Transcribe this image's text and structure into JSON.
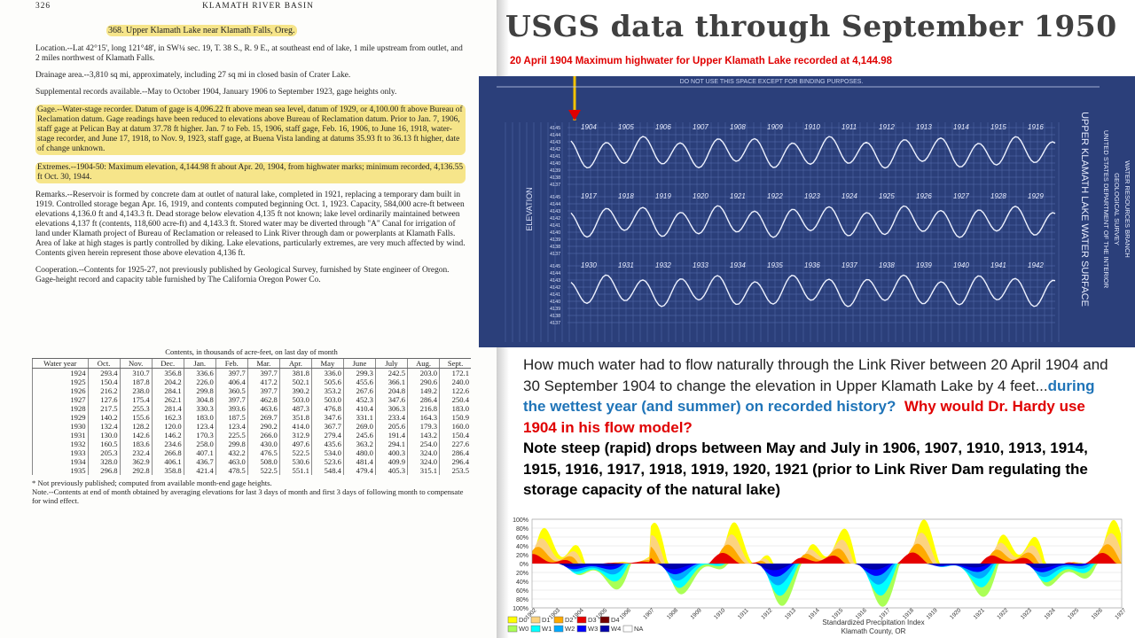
{
  "left_doc": {
    "page_number": "326",
    "running_head": "KLAMATH RIVER BASIN",
    "station": "368. Upper Klamath Lake near Klamath Falls, Oreg.",
    "paragraphs": [
      "Location.--Lat 42°15', long 121°48', in SW¼ sec. 19, T. 38 S., R. 9 E., at southeast end of lake, 1 mile upstream from outlet, and 2 miles northwest of Klamath Falls.",
      "Drainage area.--3,810 sq mi, approximately, including 27 sq mi in closed basin of Crater Lake.",
      "Supplemental records available.--May to October 1904, January 1906 to September 1923, gage heights only.",
      "Gage.--Water-stage recorder. Datum of gage is 4,096.22 ft above mean sea level, datum of 1929, or 4,100.00 ft above Bureau of Reclamation datum. Gage readings have been reduced to elevations above Bureau of Reclamation datum. Prior to Jan. 7, 1906, staff gage at Pelican Bay at datum 37.78 ft higher. Jan. 7 to Feb. 15, 1906, staff gage, Feb. 16, 1906, to June 16, 1918, water-stage recorder, and June 17, 1918, to Nov. 9, 1923, staff gage, at Buena Vista landing at datums 35.93 ft to 36.13 ft higher, date of change unknown.",
      "Extremes.--1904-50: Maximum elevation, 4,144.98 ft about Apr. 20, 1904, from highwater marks; minimum recorded, 4,136.55 ft Oct. 30, 1944.",
      "Remarks.--Reservoir is formed by concrete dam at outlet of natural lake, completed in 1921, replacing a temporary dam built in 1919. Controlled storage began Apr. 16, 1919, and contents computed beginning Oct. 1, 1923. Capacity, 584,000 acre-ft between elevations 4,136.0 ft and 4,143.3 ft. Dead storage below elevation 4,135 ft not known; lake level ordinarily maintained between elevations 4,137 ft (contents, 118,600 acre-ft) and 4,143.3 ft. Stored water may be diverted through \"A\" Canal for irrigation of land under Klamath project of Bureau of Reclamation or released to Link River through dam or powerplants at Klamath Falls. Area of lake at high stages is partly controlled by diking. Lake elevations, particularly extremes, are very much affected by wind. Contents given herein represent those above elevation 4,136 ft.",
      "Cooperation.--Contents for 1925-27, not previously published by Geological Survey, furnished by State engineer of Oregon. Gage-height record and capacity table furnished by The California Oregon Power Co."
    ]
  },
  "left_table": {
    "caption": "Contents, in thousands of acre-feet, on last day of month",
    "columns": [
      "Water year",
      "Oct.",
      "Nov.",
      "Dec.",
      "Jan.",
      "Feb.",
      "Mar.",
      "Apr.",
      "May",
      "June",
      "July",
      "Aug.",
      "Sept."
    ],
    "rows": [
      [
        "1924",
        "293.4",
        "310.7",
        "356.8",
        "336.6",
        "397.7",
        "397.7",
        "381.8",
        "336.0",
        "299.3",
        "242.5",
        "203.0",
        "172.1"
      ],
      [
        "1925",
        "150.4",
        "187.8",
        "204.2",
        "226.0",
        "406.4",
        "417.2",
        "502.1",
        "505.6",
        "455.6",
        "366.1",
        "290.6",
        "240.0"
      ],
      [
        "1926",
        "216.2",
        "238.0",
        "284.1",
        "299.8",
        "360.5",
        "397.7",
        "390.2",
        "353.2",
        "267.6",
        "204.8",
        "149.2",
        "122.6"
      ],
      [
        "1927",
        "127.6",
        "175.4",
        "262.1",
        "304.8",
        "397.7",
        "462.8",
        "503.0",
        "503.0",
        "452.3",
        "347.6",
        "286.4",
        "250.4"
      ],
      [
        "1928",
        "217.5",
        "255.3",
        "281.4",
        "330.3",
        "393.6",
        "463.6",
        "487.3",
        "476.8",
        "410.4",
        "306.3",
        "216.8",
        "183.0"
      ],
      [
        "1929",
        "140.2",
        "155.6",
        "162.3",
        "183.0",
        "187.5",
        "269.7",
        "351.8",
        "347.6",
        "331.1",
        "233.4",
        "164.3",
        "150.9"
      ],
      [
        "1930",
        "132.4",
        "128.2",
        "120.0",
        "123.4",
        "123.4",
        "290.2",
        "414.0",
        "367.7",
        "269.0",
        "205.6",
        "179.3",
        "160.0"
      ],
      [
        "1931",
        "130.0",
        "142.6",
        "146.2",
        "170.3",
        "225.5",
        "266.0",
        "312.9",
        "279.4",
        "245.6",
        "191.4",
        "143.2",
        "150.4"
      ],
      [
        "1932",
        "160.5",
        "183.6",
        "234.6",
        "258.0",
        "299.8",
        "430.0",
        "497.6",
        "435.6",
        "363.2",
        "294.1",
        "254.0",
        "227.6"
      ],
      [
        "1933",
        "205.3",
        "232.4",
        "266.8",
        "407.1",
        "432.2",
        "476.5",
        "522.5",
        "534.0",
        "480.0",
        "400.3",
        "324.0",
        "286.4"
      ],
      [
        "1934",
        "328.0",
        "362.9",
        "406.1",
        "436.7",
        "463.0",
        "508.0",
        "530.6",
        "523.6",
        "481.4",
        "409.9",
        "324.0",
        "296.4"
      ],
      [
        "1935",
        "296.8",
        "292.8",
        "358.8",
        "421.4",
        "478.5",
        "522.5",
        "551.1",
        "548.4",
        "479.4",
        "405.3",
        "315.1",
        "253.5"
      ]
    ],
    "footnotes": [
      "* Not previously published; computed from available month-end gage heights.",
      "Note.--Contents at end of month obtained by averaging elevations for last 3 days of month and first 3 days of following month to compensate for wind effect."
    ]
  },
  "title": "USGS data through September 1950",
  "caption": "20 April 1904 Maximum highwater for Upper Klamath Lake recorded at 4,144.98",
  "blueprint": {
    "header": "DO NOT USE THIS SPACE EXCEPT FOR BINDING PURPOSES.",
    "year_rows": [
      [
        "1904",
        "1905",
        "1906",
        "1907",
        "1908",
        "1909",
        "1910",
        "1911",
        "1912",
        "1913",
        "1914",
        "1915",
        "1916"
      ],
      [
        "1917",
        "1918",
        "1919",
        "1920",
        "1921",
        "1922",
        "1923",
        "1924",
        "1925",
        "1926",
        "1927",
        "1928",
        "1929"
      ],
      [
        "1930",
        "1931",
        "1932",
        "1933",
        "1934",
        "1935",
        "1936",
        "1937",
        "1938",
        "1939",
        "1940",
        "1941",
        "1942"
      ]
    ],
    "elevation_labels": [
      "4145",
      "4144",
      "4143",
      "4142",
      "4141",
      "4140",
      "4139",
      "4138",
      "4137"
    ],
    "axis_label": "ELEVATION",
    "side_label": "UPPER KLAMATH LAKE WATER SURFACE",
    "agency_lines": [
      "UNITED STATES DEPARTMENT OF THE INTERIOR",
      "GEOLOGICAL SURVEY",
      "WATER RESOURCES BRANCH"
    ]
  },
  "body": {
    "question": "How much water had to flow naturally through the Link River between 20 April 1904 and 30 September 1904 to change the elevation in Upper Klamath Lake by 4 feet...",
    "emphasis": "during the wettest year (and summer) on recorded history?",
    "challenge": "Why would Dr. Hardy use 1904 in his flow model?",
    "note": "Note steep (rapid) drops between May and July in 1906, 1907, 1910, 1913, 1914, 1915, 1916, 1917, 1918, 1919, 1920, 1921 (prior to Link River Dam regulating the storage capacity of the natural lake)"
  },
  "spi_chart": {
    "title": "Standardized Precipitation Index",
    "subtitle": "Klamath County, OR",
    "y_labels": [
      "100%",
      "80%",
      "60%",
      "40%",
      "20%",
      "0%",
      "20%",
      "40%",
      "60%",
      "80%",
      "100%"
    ],
    "x_labels": [
      "1902",
      "1903",
      "1904",
      "1905",
      "1906",
      "1907",
      "1908",
      "1909",
      "1910",
      "1911",
      "1912",
      "1913",
      "1914",
      "1915",
      "1916",
      "1917",
      "1918",
      "1919",
      "1920",
      "1921",
      "1922",
      "1923",
      "1924",
      "1925",
      "1926",
      "1927"
    ],
    "legend": [
      {
        "name": "D0",
        "color": "#ffff00"
      },
      {
        "name": "D1",
        "color": "#fcd37f"
      },
      {
        "name": "D2",
        "color": "#ffaa00"
      },
      {
        "name": "D3",
        "color": "#e60000"
      },
      {
        "name": "D4",
        "color": "#730000"
      },
      {
        "name": "W0",
        "color": "#aaff55"
      },
      {
        "name": "W1",
        "color": "#01ffff"
      },
      {
        "name": "W2",
        "color": "#00aaff"
      },
      {
        "name": "W3",
        "color": "#0000ff"
      },
      {
        "name": "W4",
        "color": "#0000aa"
      },
      {
        "name": "NA",
        "color": "#ffffff"
      }
    ]
  }
}
